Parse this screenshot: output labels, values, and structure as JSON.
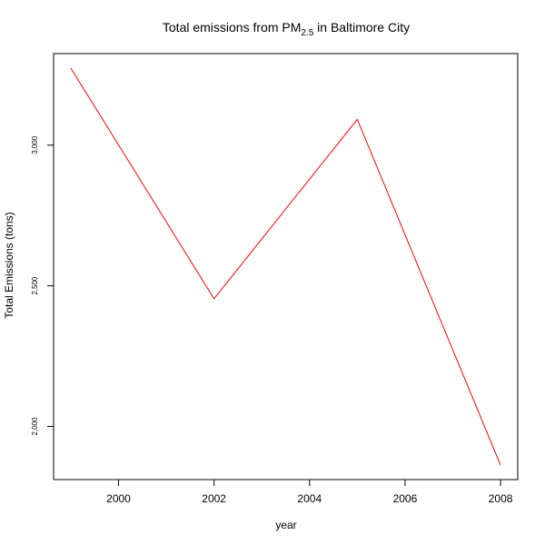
{
  "chart_data": {
    "type": "line",
    "title": {
      "prefix": "Total emissions from PM",
      "subscript": "2.5",
      "suffix": " in Baltimore City"
    },
    "xlabel": "year",
    "ylabel": "Total Emissions (tons)",
    "x": [
      1999,
      2002,
      2005,
      2008
    ],
    "series": [
      {
        "values": [
          3274.2,
          2453.9,
          3091.4,
          1862.3
        ],
        "color": "#ff0000"
      }
    ],
    "xlim": [
      1998.64,
      2008.36
    ],
    "ylim": [
      1811.0,
      3325.5
    ],
    "xticks": [
      2000,
      2002,
      2004,
      2006,
      2008
    ],
    "xtick_labels": [
      "2000",
      "2002",
      "2004",
      "2006",
      "2008"
    ],
    "yticks": [
      2000,
      2500,
      3000
    ],
    "ytick_labels": [
      "2,000",
      "2,500",
      "3,000"
    ],
    "grid": false
  }
}
